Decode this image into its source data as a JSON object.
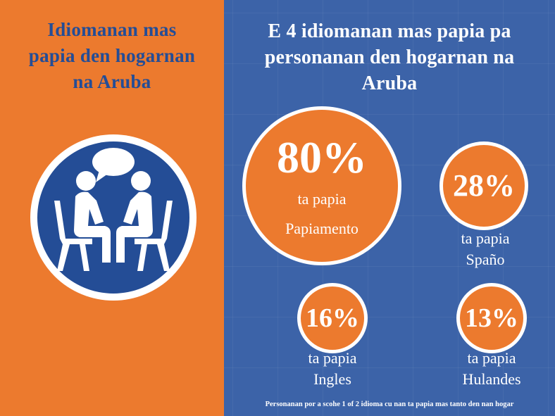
{
  "left": {
    "title_lines": [
      "Idiomanan mas",
      "papia den hogarnan",
      "na Aruba"
    ],
    "icon": "two-people-conversation-icon"
  },
  "right": {
    "title_lines": [
      "E 4 idiomanan mas papia pa",
      "personanan den hogarnan na",
      "Aruba"
    ],
    "stats": [
      {
        "percent": "80%",
        "caption_1": "ta papia",
        "caption_2": "Papiamento"
      },
      {
        "percent": "28%",
        "caption_1": "ta papia",
        "caption_2": "Spaño"
      },
      {
        "percent": "16%",
        "caption_1": "ta papia",
        "caption_2": "Ingles"
      },
      {
        "percent": "13%",
        "caption_1": "ta papia",
        "caption_2": "Hulandes"
      }
    ],
    "footnote": "Personanan por a scohe 1 of 2 idioma cu nan ta papia mas tanto den nan hogar"
  },
  "colors": {
    "orange": "#ec7a2e",
    "blue": "#3c63a8",
    "dark_blue": "#244d96",
    "white": "#ffffff"
  }
}
